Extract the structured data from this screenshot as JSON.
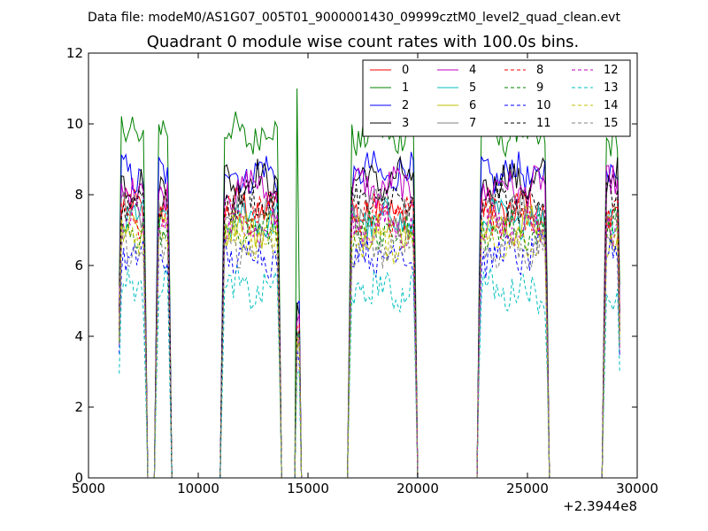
{
  "chart_data": {
    "type": "line",
    "suptitle": "Data file: modeM0/AS1G07_005T01_9000001430_09999cztM0_level2_quad_clean.evt",
    "title": "Quadrant 0 module wise count rates with 100.0s bins.",
    "xlabel": "",
    "ylabel": "",
    "x_offset_label": "+2.3944e8",
    "xlim": [
      5000,
      30000
    ],
    "ylim": [
      0,
      12
    ],
    "x_ticks": [
      5000,
      10000,
      15000,
      20000,
      25000,
      30000
    ],
    "x_tick_labels": [
      "5000",
      "10000",
      "15000",
      "20000",
      "25000",
      "30000"
    ],
    "y_ticks": [
      0,
      2,
      4,
      6,
      8,
      10,
      12
    ],
    "y_tick_labels": [
      "0",
      "2",
      "4",
      "6",
      "8",
      "10",
      "12"
    ],
    "grid": false,
    "legend_position": "top-right",
    "segments": [
      {
        "start": 6400,
        "end": 7600
      },
      {
        "start": 8100,
        "end": 8700
      },
      {
        "start": 11100,
        "end": 13700
      },
      {
        "start": 14450,
        "end": 14600
      },
      {
        "start": 16900,
        "end": 19900
      },
      {
        "start": 22800,
        "end": 25900
      },
      {
        "start": 28500,
        "end": 29200
      }
    ],
    "notable_points": [
      {
        "series": "1",
        "x": 14500,
        "y": 11.0
      },
      {
        "series": "1",
        "x": 13450,
        "y": 10.4
      },
      {
        "series": "1",
        "x": 7000,
        "y": 10.2
      }
    ],
    "series": [
      {
        "name": "0",
        "color": "#ff0000",
        "style": "solid",
        "level": 7.6
      },
      {
        "name": "1",
        "color": "#008000",
        "style": "solid",
        "level": 9.7
      },
      {
        "name": "2",
        "color": "#0000ff",
        "style": "solid",
        "level": 8.6
      },
      {
        "name": "3",
        "color": "#000000",
        "style": "solid",
        "level": 8.4
      },
      {
        "name": "4",
        "color": "#bf00bf",
        "style": "solid",
        "level": 8.2
      },
      {
        "name": "5",
        "color": "#00bfbf",
        "style": "solid",
        "level": 7.3
      },
      {
        "name": "6",
        "color": "#bfbf00",
        "style": "solid",
        "level": 7.1
      },
      {
        "name": "7",
        "color": "#808080",
        "style": "solid",
        "level": 7.5
      },
      {
        "name": "8",
        "color": "#ff0000",
        "style": "dashed",
        "level": 7.4
      },
      {
        "name": "9",
        "color": "#008000",
        "style": "dashed",
        "level": 7.0
      },
      {
        "name": "10",
        "color": "#0000ff",
        "style": "dashed",
        "level": 6.3
      },
      {
        "name": "11",
        "color": "#000000",
        "style": "dashed",
        "level": 7.8
      },
      {
        "name": "12",
        "color": "#bf00bf",
        "style": "dashed",
        "level": 7.1
      },
      {
        "name": "13",
        "color": "#00bfbf",
        "style": "dashed",
        "level": 5.3
      },
      {
        "name": "14",
        "color": "#bfbf00",
        "style": "dashed",
        "level": 6.7
      },
      {
        "name": "15",
        "color": "#808080",
        "style": "dashed",
        "level": 6.5
      }
    ]
  }
}
